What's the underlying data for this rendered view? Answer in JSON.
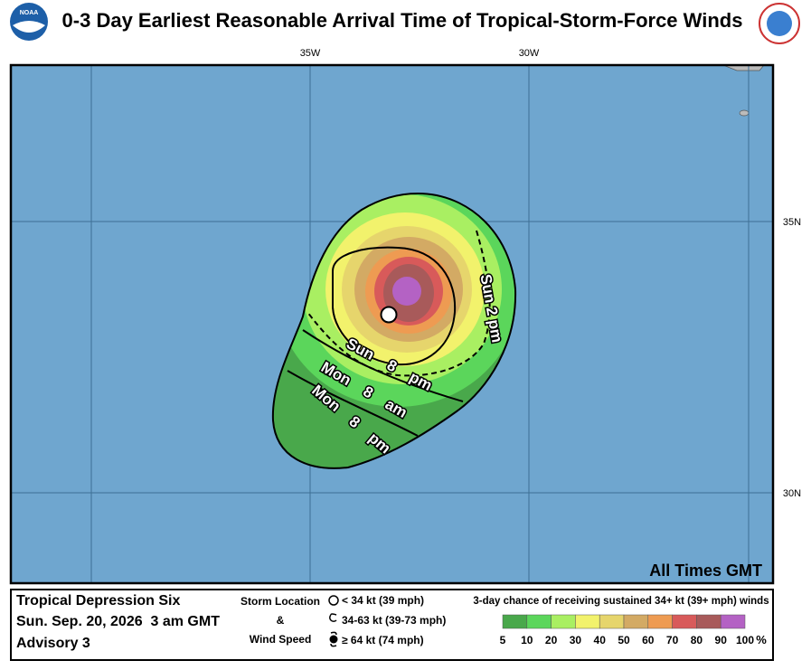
{
  "header": {
    "title": "0-3 Day Earliest Reasonable Arrival Time of Tropical-Storm-Force Winds",
    "logo": "NOAA"
  },
  "map": {
    "lon_labels": [
      "35W",
      "30W"
    ],
    "lat_labels": [
      "35N",
      "30N"
    ],
    "contour_labels": [
      "Sun 2 pm",
      "Sun 8 pm",
      "Mon 8 am",
      "Mon 8 pm"
    ],
    "note": "All Times GMT"
  },
  "legend": {
    "storm_name": "Tropical Depression Six",
    "date": "Sun. Sep. 20, 2026  3 am GMT",
    "advisory": "Advisory 3",
    "key_title": [
      "Storm Location",
      "&",
      "Wind Speed"
    ],
    "key_items": [
      "< 34 kt (39 mph)",
      "34-63 kt (39-73 mph)",
      "≥ 64 kt (74 mph)"
    ],
    "scale_title": "3-day chance of receiving sustained 34+ kt (39+ mph) winds",
    "scale_colors": [
      "#49a84b",
      "#5bd65b",
      "#a9ef62",
      "#f2f26c",
      "#e6d56c",
      "#d3aa64",
      "#ee9b52",
      "#d85a5a",
      "#a85a5a",
      "#b462c4"
    ],
    "scale_ticks": [
      5,
      10,
      20,
      30,
      40,
      50,
      60,
      70,
      80,
      90,
      100
    ],
    "scale_unit": "%"
  }
}
